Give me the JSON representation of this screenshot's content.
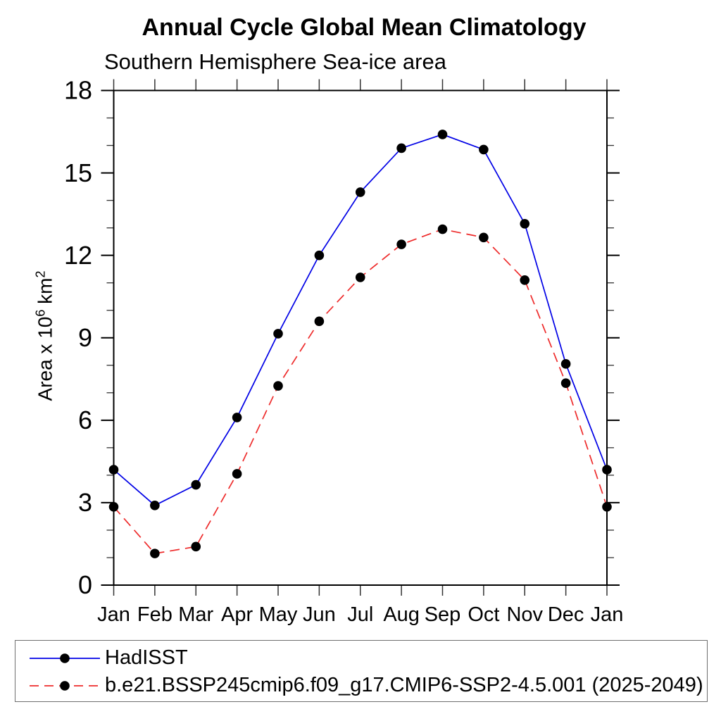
{
  "header": {
    "title": "Annual Cycle Global Mean Climatology",
    "subtitle": "Southern Hemisphere Sea-ice area"
  },
  "y_axis": {
    "label_prefix": "Area x 10",
    "label_sup1": "6",
    "label_mid": " km",
    "label_sup2": "2"
  },
  "legend": {
    "items": [
      {
        "label": "HadISST",
        "line_color": "#0000e6",
        "line_style": "solid",
        "marker": "black-dot"
      },
      {
        "label": "b.e21.BSSP245cmip6.f09_g17.CMIP6-SSP2-4.5.001 (2025-2049)",
        "line_color": "#ee2b2b",
        "line_style": "dashed",
        "marker": "black-dot"
      }
    ]
  },
  "chart_data": {
    "type": "line",
    "title": "Annual Cycle Global Mean Climatology",
    "subtitle": "Southern Hemisphere Sea-ice area",
    "xlabel": "",
    "ylabel": "Area x 10^6 km^2",
    "categories": [
      "Jan",
      "Feb",
      "Mar",
      "Apr",
      "May",
      "Jun",
      "Jul",
      "Aug",
      "Sep",
      "Oct",
      "Nov",
      "Dec",
      "Jan"
    ],
    "series": [
      {
        "name": "HadISST",
        "color": "#0000e6",
        "style": "solid",
        "marker": "black-dot",
        "values": [
          4.2,
          2.9,
          3.65,
          6.1,
          9.15,
          12.0,
          14.3,
          15.9,
          16.4,
          15.85,
          13.15,
          8.05,
          4.2
        ]
      },
      {
        "name": "b.e21.BSSP245cmip6.f09_g17.CMIP6-SSP2-4.5.001 (2025-2049)",
        "color": "#ee2b2b",
        "style": "dashed",
        "marker": "black-dot",
        "values": [
          2.85,
          1.15,
          1.4,
          4.05,
          7.25,
          9.6,
          11.2,
          12.4,
          12.95,
          12.65,
          11.1,
          7.35,
          2.85
        ]
      }
    ],
    "ylim": [
      0,
      18
    ],
    "y_major_ticks": [
      0,
      3,
      6,
      9,
      12,
      15,
      18
    ],
    "y_minor_step": 1,
    "grid": false,
    "frame": true,
    "legend_position": "bottom-left-box",
    "marker_color": "#000000"
  }
}
